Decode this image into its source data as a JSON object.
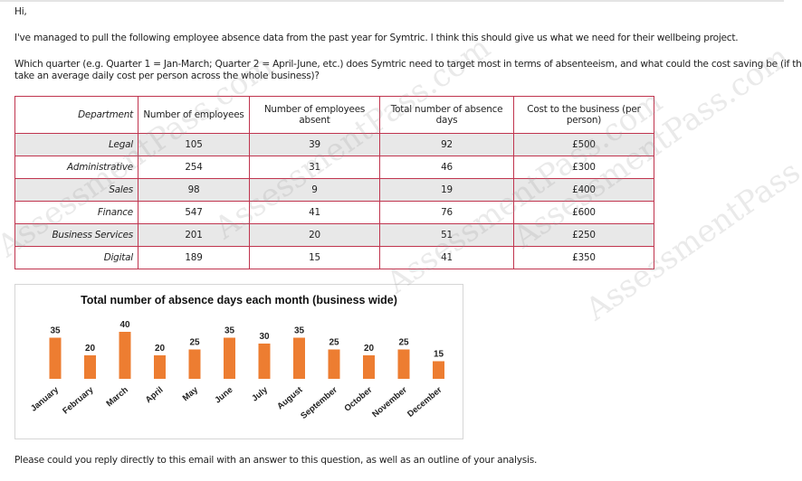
{
  "email": {
    "greeting": "Hi,",
    "intro": "I've managed to pull the following employee absence data from the past year for Symtric. I think this should give us what we need for their wellbeing project.",
    "question_line1": "Which quarter (e.g. Quarter 1 = Jan-March; Quarter 2 = April-June, etc.) does Symtric need to target most in terms of absenteeism, and what could the cost saving be (if they",
    "question_line2": "take an average daily cost per person across the whole business)?",
    "closing": "Please could you reply directly to this email with an answer to this question, as well as an outline of your analysis."
  },
  "table": {
    "headers": {
      "department": "Department",
      "employees": "Number of employees",
      "absent": "Number of employees absent",
      "days": "Total number of absence days",
      "cost": "Cost to the business (per person)"
    },
    "rows": [
      {
        "department": "Legal",
        "employees": "105",
        "absent": "39",
        "days": "92",
        "cost": "£500"
      },
      {
        "department": "Administrative",
        "employees": "254",
        "absent": "31",
        "days": "46",
        "cost": "£300"
      },
      {
        "department": "Sales",
        "employees": "98",
        "absent": "9",
        "days": "19",
        "cost": "£400"
      },
      {
        "department": "Finance",
        "employees": "547",
        "absent": "41",
        "days": "76",
        "cost": "£600"
      },
      {
        "department": "Business Services",
        "employees": "201",
        "absent": "20",
        "days": "51",
        "cost": "£250"
      },
      {
        "department": "Digital",
        "employees": "189",
        "absent": "15",
        "days": "41",
        "cost": "£350"
      }
    ]
  },
  "watermark": "AssessmentPass.com",
  "colors": {
    "bar": "#ed7d31",
    "table_border": "#c0344e",
    "shade": "#e8e8e8"
  },
  "chart_data": {
    "type": "bar",
    "title": "Total number of absence days each month (business wide)",
    "categories": [
      "January",
      "February",
      "March",
      "April",
      "May",
      "June",
      "July",
      "August",
      "September",
      "October",
      "November",
      "December"
    ],
    "values": [
      35,
      20,
      40,
      20,
      25,
      35,
      30,
      35,
      25,
      20,
      25,
      15
    ],
    "xlabel": "",
    "ylabel": "",
    "ylim": [
      0,
      40
    ],
    "grid": false,
    "data_labels": true
  }
}
